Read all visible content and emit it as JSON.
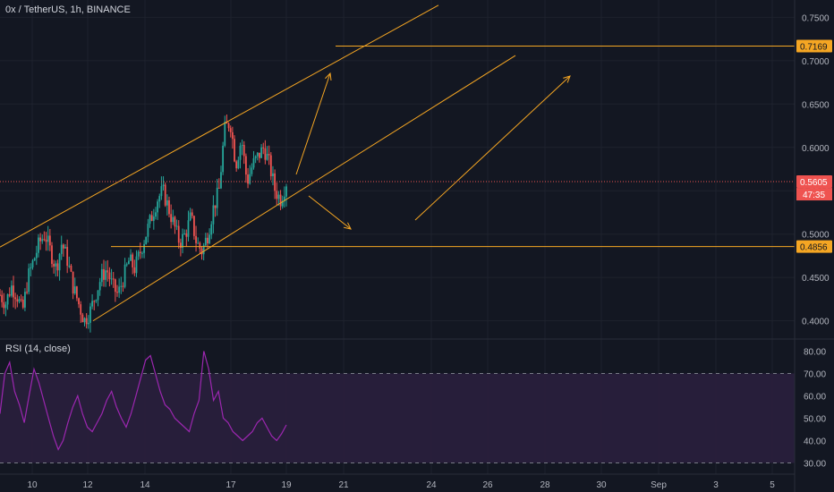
{
  "header": {
    "title": "0x / TetherUS, 1h, BINANCE"
  },
  "colors": {
    "background": "#131722",
    "grid": "#1e222d",
    "up": "#26a69a",
    "down": "#ef5350",
    "drawing": "#f5a623",
    "rsi_line": "#9c27b0",
    "rsi_band": "#2a1f3d",
    "axis_text": "#b2b5be"
  },
  "chart_data": [
    {
      "type": "candlestick",
      "title": "0x / TetherUS, 1h, BINANCE",
      "x_tick_labels": [
        "10",
        "12",
        "14",
        "17",
        "19",
        "21",
        "24",
        "26",
        "28",
        "30",
        "Sep",
        "3",
        "5"
      ],
      "y_tick_labels": [
        "0.4000",
        "0.4500",
        "0.5000",
        "0.5500",
        "0.6000",
        "0.6500",
        "0.7000",
        "0.7500"
      ],
      "ylim": [
        0.38,
        0.77
      ],
      "price_labels": [
        {
          "name": "last_price",
          "value": "0.5605",
          "countdown": "47:35"
        },
        {
          "name": "resistance",
          "value": "0.7169"
        },
        {
          "name": "support",
          "value": "0.4856"
        }
      ],
      "ohlc_path": [
        0.43,
        0.42,
        0.44,
        0.43,
        0.41,
        0.45,
        0.47,
        0.49,
        0.5,
        0.48,
        0.46,
        0.49,
        0.47,
        0.44,
        0.42,
        0.4,
        0.41,
        0.43,
        0.45,
        0.46,
        0.44,
        0.43,
        0.45,
        0.47,
        0.46,
        0.48,
        0.5,
        0.52,
        0.54,
        0.55,
        0.53,
        0.51,
        0.49,
        0.5,
        0.52,
        0.49,
        0.48,
        0.5,
        0.53,
        0.55,
        0.62,
        0.63,
        0.58,
        0.61,
        0.56,
        0.58,
        0.59,
        0.6,
        0.58,
        0.55,
        0.54,
        0.56
      ]
    },
    {
      "type": "line",
      "title": "RSI (14, close)",
      "y_tick_labels": [
        "30.00",
        "40.00",
        "50.00",
        "60.00",
        "70.00",
        "80.00"
      ],
      "ylim": [
        25,
        85
      ],
      "bands": {
        "upper": 70,
        "lower": 30
      },
      "values": [
        52,
        70,
        75,
        62,
        56,
        48,
        60,
        72,
        66,
        58,
        50,
        42,
        36,
        40,
        48,
        55,
        60,
        52,
        46,
        44,
        48,
        52,
        58,
        62,
        55,
        50,
        46,
        52,
        60,
        68,
        76,
        78,
        70,
        62,
        56,
        54,
        50,
        48,
        46,
        44,
        52,
        58,
        80,
        72,
        58,
        62,
        50,
        48,
        44,
        42,
        40,
        42,
        44,
        48,
        50,
        46,
        42,
        40,
        43,
        47
      ]
    }
  ]
}
